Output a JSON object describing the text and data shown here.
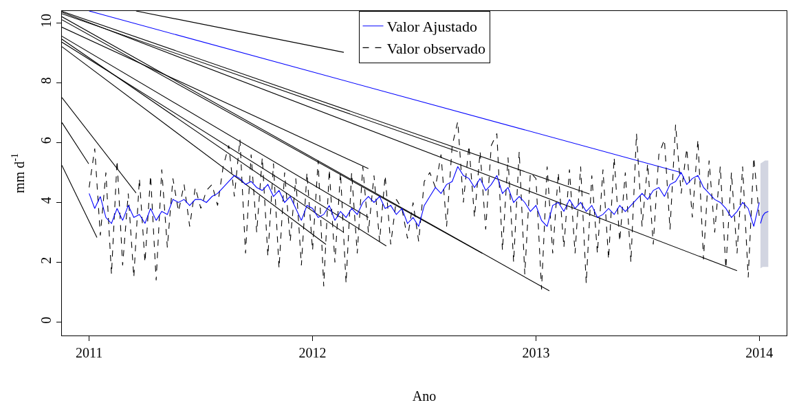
{
  "chart_data": {
    "type": "line",
    "xlabel": "Ano",
    "ylabel": "mm d$^{-1}$",
    "xlim": [
      2010.878,
      2014.122
    ],
    "ylim": [
      -0.44,
      10.39
    ],
    "xticks": [
      2011,
      2012,
      2013,
      2014
    ],
    "yticks": [
      0,
      2,
      4,
      6,
      8,
      10
    ],
    "legend": "top",
    "series": [
      {
        "color": "#000000",
        "line_style": "solid",
        "x": [
          2010.878,
          2011.035
        ],
        "values": [
          5.24,
          2.83
        ]
      },
      {
        "color": "#000000",
        "line_style": "solid",
        "x": [
          2010.878,
          2010.998
        ],
        "values": [
          6.67,
          5.29
        ]
      },
      {
        "color": "#000000",
        "line_style": "solid",
        "x": [
          2010.878,
          2011.21
        ],
        "values": [
          7.5,
          4.32
        ]
      },
      {
        "color": "#000000",
        "line_style": "solid",
        "x": [
          2010.878,
          2012.06
        ],
        "values": [
          9.2,
          2.6
        ]
      },
      {
        "color": "#000000",
        "line_style": "solid",
        "x": [
          2010.878,
          2012.33
        ],
        "values": [
          9.35,
          2.55
        ]
      },
      {
        "color": "#000000",
        "line_style": "solid",
        "x": [
          2010.878,
          2012.14
        ],
        "values": [
          9.45,
          3.0
        ]
      },
      {
        "color": "#000000",
        "line_style": "solid",
        "x": [
          2010.878,
          2012.25
        ],
        "values": [
          9.55,
          3.5
        ]
      },
      {
        "color": "#000000",
        "line_style": "solid",
        "x": [
          2010.878,
          2012.25
        ],
        "values": [
          9.85,
          5.13
        ]
      },
      {
        "color": "#000000",
        "line_style": "solid",
        "x": [
          2010.878,
          2012.76
        ],
        "values": [
          10.1,
          2.3
        ]
      },
      {
        "color": "#000000",
        "line_style": "solid",
        "x": [
          2010.878,
          2013.06
        ],
        "values": [
          10.2,
          1.05
        ]
      },
      {
        "color": "#000000",
        "line_style": "solid",
        "x": [
          2010.878,
          2012.65
        ],
        "values": [
          10.3,
          5.7
        ]
      },
      {
        "color": "#000000",
        "line_style": "solid",
        "x": [
          2010.878,
          2013.9
        ],
        "values": [
          10.35,
          1.72
        ]
      },
      {
        "color": "#000000",
        "line_style": "solid",
        "x": [
          2010.878,
          2013.24
        ],
        "values": [
          10.38,
          4.28
        ]
      },
      {
        "color": "#000000",
        "line_style": "solid",
        "x": [
          2011.21,
          2012.14
        ],
        "values": [
          10.39,
          9.01
        ]
      },
      {
        "color": "#0000ff",
        "line_style": "solid",
        "x": [
          2011.0,
          2013.65
        ],
        "values": [
          10.39,
          5.0
        ]
      },
      {
        "name": "Valor observado",
        "color": "#000000",
        "line_style": "dashed",
        "x": [
          2011.0,
          2011.025,
          2011.05,
          2011.075,
          2011.1,
          2011.125,
          2011.15,
          2011.175,
          2011.2,
          2011.225,
          2011.25,
          2011.275,
          2011.3,
          2011.325,
          2011.35,
          2011.375,
          2011.4,
          2011.425,
          2011.45,
          2011.475,
          2011.5,
          2011.525,
          2011.55,
          2011.575,
          2011.6,
          2011.625,
          2011.65,
          2011.675,
          2011.7,
          2011.725,
          2011.75,
          2011.775,
          2011.8,
          2011.825,
          2011.85,
          2011.875,
          2011.9,
          2011.925,
          2011.95,
          2011.975,
          2012.0,
          2012.025,
          2012.05,
          2012.075,
          2012.1,
          2012.125,
          2012.15,
          2012.175,
          2012.2,
          2012.225,
          2012.25,
          2012.275,
          2012.3,
          2012.325,
          2012.35,
          2012.375,
          2012.4,
          2012.425,
          2012.45,
          2012.475,
          2012.5,
          2012.525,
          2012.55,
          2012.575,
          2012.6,
          2012.625,
          2012.65,
          2012.675,
          2012.7,
          2012.725,
          2012.75,
          2012.775,
          2012.8,
          2012.825,
          2012.85,
          2012.875,
          2012.9,
          2012.925,
          2012.95,
          2012.975,
          2013.0,
          2013.025,
          2013.05,
          2013.075,
          2013.1,
          2013.125,
          2013.15,
          2013.175,
          2013.2,
          2013.225,
          2013.25,
          2013.275,
          2013.3,
          2013.325,
          2013.35,
          2013.375,
          2013.4,
          2013.425,
          2013.45,
          2013.475,
          2013.5,
          2013.525,
          2013.55,
          2013.575,
          2013.6,
          2013.625,
          2013.65,
          2013.675,
          2013.7,
          2013.725,
          2013.75,
          2013.775,
          2013.8,
          2013.825,
          2013.85,
          2013.875,
          2013.9,
          2013.925,
          2013.95,
          2013.975,
          2014.0
        ],
        "values": [
          4.5,
          5.8,
          2.9,
          5.0,
          1.6,
          5.4,
          1.9,
          4.3,
          1.5,
          4.8,
          2.0,
          4.9,
          1.4,
          5.1,
          2.5,
          4.8,
          3.7,
          4.6,
          3.2,
          4.5,
          3.8,
          4.4,
          4.6,
          3.9,
          5.2,
          5.9,
          4.2,
          6.1,
          2.3,
          5.6,
          3.0,
          5.5,
          2.2,
          5.3,
          1.8,
          5.0,
          2.7,
          4.8,
          1.9,
          5.0,
          2.4,
          5.4,
          1.2,
          5.1,
          2.0,
          5.0,
          1.3,
          5.0,
          2.3,
          5.2,
          3.0,
          4.9,
          2.7,
          4.9,
          2.6,
          4.1,
          3.8,
          2.8,
          4.0,
          2.7,
          4.7,
          5.0,
          4.5,
          5.6,
          3.2,
          5.9,
          6.7,
          4.0,
          5.9,
          3.5,
          5.7,
          3.1,
          5.9,
          6.3,
          2.4,
          5.5,
          2.0,
          5.7,
          1.6,
          5.0,
          4.8,
          1.1,
          5.2,
          2.3,
          5.0,
          2.5,
          5.1,
          2.3,
          5.2,
          1.3,
          4.9,
          2.3,
          5.1,
          2.1,
          5.5,
          2.7,
          5.0,
          2.0,
          6.3,
          3.2,
          5.3,
          2.6,
          5.6,
          6.1,
          3.1,
          6.6,
          4.3,
          5.8,
          3.5,
          6.1,
          2.1,
          5.4,
          3.0,
          5.2,
          1.8,
          5.0,
          2.3,
          5.2,
          1.5,
          5.5,
          3.5
        ]
      },
      {
        "name": "Valor Ajustado",
        "color": "#0000ff",
        "line_style": "solid",
        "x": [
          2011.0,
          2011.025,
          2011.05,
          2011.075,
          2011.1,
          2011.125,
          2011.15,
          2011.175,
          2011.2,
          2011.225,
          2011.25,
          2011.275,
          2011.3,
          2011.325,
          2011.35,
          2011.375,
          2011.4,
          2011.425,
          2011.45,
          2011.475,
          2011.5,
          2011.525,
          2011.55,
          2011.575,
          2011.6,
          2011.625,
          2011.65,
          2011.675,
          2011.7,
          2011.725,
          2011.75,
          2011.775,
          2011.8,
          2011.825,
          2011.85,
          2011.875,
          2011.9,
          2011.925,
          2011.95,
          2011.975,
          2012.0,
          2012.025,
          2012.05,
          2012.075,
          2012.1,
          2012.125,
          2012.15,
          2012.175,
          2012.2,
          2012.225,
          2012.25,
          2012.275,
          2012.3,
          2012.325,
          2012.35,
          2012.375,
          2012.4,
          2012.425,
          2012.45,
          2012.475,
          2012.5,
          2012.525,
          2012.55,
          2012.575,
          2012.6,
          2012.625,
          2012.65,
          2012.675,
          2012.7,
          2012.725,
          2012.75,
          2012.775,
          2012.8,
          2012.825,
          2012.85,
          2012.875,
          2012.9,
          2012.925,
          2012.95,
          2012.975,
          2013.0,
          2013.025,
          2013.05,
          2013.075,
          2013.1,
          2013.125,
          2013.15,
          2013.175,
          2013.2,
          2013.225,
          2013.25,
          2013.275,
          2013.3,
          2013.325,
          2013.35,
          2013.375,
          2013.4,
          2013.425,
          2013.45,
          2013.475,
          2013.5,
          2013.525,
          2013.55,
          2013.575,
          2013.6,
          2013.625,
          2013.65,
          2013.675,
          2013.7,
          2013.725,
          2013.75,
          2013.775,
          2013.8,
          2013.825,
          2013.85,
          2013.875,
          2013.9,
          2013.925,
          2013.95,
          2013.975,
          2014.0
        ],
        "values": [
          4.3,
          3.8,
          4.2,
          3.5,
          3.3,
          3.8,
          3.4,
          3.9,
          3.5,
          3.6,
          3.3,
          3.8,
          3.4,
          3.7,
          3.6,
          4.1,
          4.0,
          4.1,
          3.9,
          4.1,
          4.1,
          4.0,
          4.2,
          4.3,
          4.5,
          4.7,
          4.9,
          4.8,
          4.6,
          4.7,
          4.5,
          4.4,
          4.6,
          4.2,
          4.4,
          4.0,
          4.2,
          3.8,
          3.4,
          3.9,
          3.8,
          3.5,
          3.6,
          3.9,
          3.4,
          3.7,
          3.5,
          3.8,
          3.6,
          4.0,
          4.2,
          4.0,
          4.2,
          3.8,
          3.9,
          3.6,
          3.8,
          3.3,
          3.5,
          3.2,
          3.9,
          4.2,
          4.5,
          4.3,
          4.6,
          4.7,
          5.2,
          4.9,
          4.8,
          4.5,
          4.8,
          4.4,
          4.6,
          4.9,
          4.3,
          4.5,
          4.0,
          4.2,
          4.0,
          3.7,
          3.9,
          3.4,
          3.2,
          3.9,
          4.0,
          3.7,
          4.1,
          3.8,
          4.0,
          3.7,
          3.9,
          3.5,
          3.6,
          3.8,
          3.6,
          3.9,
          3.7,
          3.9,
          4.1,
          4.3,
          4.1,
          4.4,
          4.5,
          4.2,
          4.6,
          4.7,
          5.0,
          4.6,
          4.8,
          4.9,
          4.5,
          4.3,
          4.1,
          4.0,
          3.8,
          3.5,
          3.7,
          4.0,
          3.8,
          3.2,
          4.0
        ]
      },
      {
        "color": "#0000ff",
        "line_style": "solid",
        "x": [
          2014.005,
          2014.015,
          2014.025,
          2014.04
        ],
        "values": [
          3.3,
          3.55,
          3.65,
          3.7
        ],
        "lower": [
          1.8,
          1.85,
          1.85,
          1.85
        ],
        "upper": [
          5.3,
          5.35,
          5.4,
          5.4
        ]
      }
    ]
  }
}
